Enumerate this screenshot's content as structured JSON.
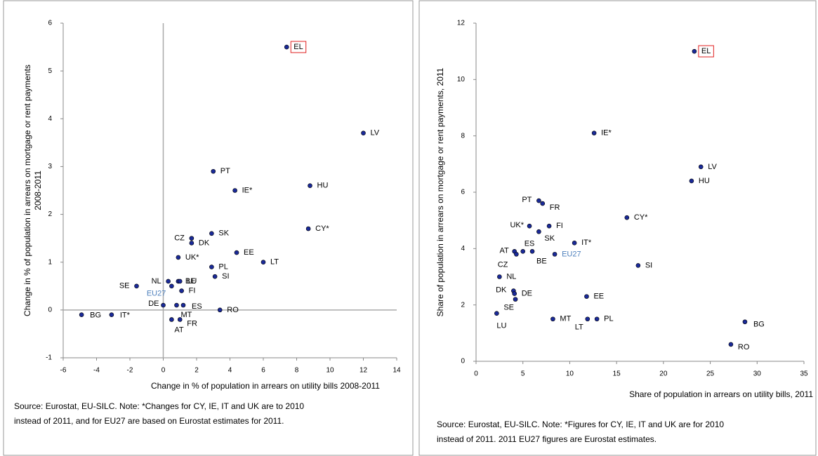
{
  "chart_data": [
    {
      "type": "scatter",
      "xlabel": "Change in % of population in arrears on utility bills 2008-2011",
      "ylabel": [
        "Change in % of population in arrears on mortgage or rent payments",
        "2008-2011"
      ],
      "note": [
        "Source: Eurostat, EU-SILC. Note: *Changes for CY, IE, IT and UK are to 2010",
        "instead of 2011, and for EU27 are based on Eurostat estimates for 2011."
      ],
      "labels": [
        "EL",
        "LV",
        "PT",
        "IE*",
        "HU",
        "CY*",
        "SK",
        "CZ",
        "DK",
        "EE",
        "UK*",
        "LT",
        "PL",
        "SI",
        "NL",
        "BE",
        "LU",
        "SE",
        "EU27",
        "FI",
        "DE",
        "ES",
        "MT",
        "AT",
        "FR",
        "RO",
        "BG",
        "IT*"
      ],
      "x": [
        7.4,
        12,
        3,
        4.3,
        8.8,
        8.7,
        2.9,
        1.7,
        1.7,
        4.4,
        0.9,
        6,
        2.9,
        3.1,
        0.3,
        0.9,
        1.0,
        -1.6,
        0.5,
        1.1,
        0,
        1.2,
        0.8,
        0.5,
        1.0,
        3.4,
        -4.9,
        -3.1
      ],
      "values": [
        5.5,
        3.7,
        2.9,
        2.5,
        2.6,
        1.7,
        1.6,
        1.5,
        1.4,
        1.2,
        1.1,
        1.0,
        0.9,
        0.7,
        0.6,
        0.6,
        0.6,
        0.5,
        0.5,
        0.4,
        0.1,
        0.1,
        0.1,
        -0.2,
        -0.2,
        0,
        -0.1,
        -0.1
      ],
      "label_colors": [
        "#000",
        "#000",
        "#000",
        "#000",
        "#000",
        "#000",
        "#000",
        "#000",
        "#000",
        "#000",
        "#000",
        "#000",
        "#000",
        "#000",
        "#000",
        "#000",
        "#000",
        "#000",
        "#4f81bd",
        "#000",
        "#000",
        "#000",
        "#000",
        "#000",
        "#000",
        "#000",
        "#000",
        "#000"
      ],
      "label_box": [
        true,
        false,
        false,
        false,
        false,
        false,
        false,
        false,
        false,
        false,
        false,
        false,
        false,
        false,
        false,
        false,
        false,
        false,
        false,
        false,
        false,
        false,
        false,
        false,
        false,
        false,
        false,
        false
      ],
      "color": "#1a2a99",
      "box_color": "#e02020",
      "xlim": [
        -6,
        14
      ],
      "xticks": [
        -6,
        -4,
        -2,
        0,
        2,
        4,
        6,
        8,
        10,
        12,
        14
      ],
      "ylim": [
        -1,
        6
      ],
      "yticks": [
        -1,
        0,
        1,
        2,
        3,
        4,
        5,
        6
      ],
      "zero_lines": true
    },
    {
      "type": "scatter",
      "xlabel": "Share of population in arrears on utility bills, 2011",
      "ylabel": [
        "Share of population in arrears on mortgage or rent payments, 2011"
      ],
      "note": [
        "Source: Eurostat, EU-SILC. Note: *Figures for CY, IE, IT and UK are for 2010",
        "instead of 2011. 2011 EU27 figures are Eurostat estimates."
      ],
      "labels": [
        "EL",
        "IE*",
        "LV",
        "HU",
        "PT",
        "FR",
        "CY*",
        "FI",
        "UK*",
        "SK",
        "IT*",
        "AT",
        "CZ",
        "ES",
        "BE",
        "EU27",
        "SI",
        "NL",
        "EE",
        "DK",
        "DE",
        "SE",
        "LU",
        "MT",
        "LT",
        "PL",
        "BG",
        "RO"
      ],
      "x": [
        23.3,
        12.6,
        24,
        23,
        6.7,
        7.1,
        16.1,
        7.8,
        5.7,
        6.7,
        10.5,
        4.1,
        4.3,
        5.0,
        6.0,
        8.4,
        17.3,
        2.5,
        11.8,
        4.0,
        4.1,
        4.2,
        2.2,
        8.2,
        11.9,
        12.9,
        28.7,
        27.2
      ],
      "values": [
        11,
        8.1,
        6.9,
        6.4,
        5.7,
        5.6,
        5.1,
        4.8,
        4.8,
        4.6,
        4.2,
        3.9,
        3.8,
        3.9,
        3.9,
        3.8,
        3.4,
        3.0,
        2.3,
        2.5,
        2.4,
        2.2,
        1.7,
        1.5,
        1.5,
        1.5,
        1.4,
        0.6
      ],
      "label_colors": [
        "#000",
        "#000",
        "#000",
        "#000",
        "#000",
        "#000",
        "#000",
        "#000",
        "#000",
        "#000",
        "#000",
        "#000",
        "#000",
        "#000",
        "#000",
        "#4f81bd",
        "#000",
        "#000",
        "#000",
        "#000",
        "#000",
        "#000",
        "#000",
        "#000",
        "#000",
        "#000",
        "#000",
        "#000"
      ],
      "label_box": [
        true,
        false,
        false,
        false,
        false,
        false,
        false,
        false,
        false,
        false,
        false,
        false,
        false,
        false,
        false,
        false,
        false,
        false,
        false,
        false,
        false,
        false,
        false,
        false,
        false,
        false,
        false,
        false
      ],
      "color": "#1a2a99",
      "box_color": "#e02020",
      "xlim": [
        0,
        35
      ],
      "xticks": [
        0,
        5,
        10,
        15,
        20,
        25,
        30,
        35
      ],
      "ylim": [
        0,
        12
      ],
      "yticks": [
        0,
        2,
        4,
        6,
        8,
        10,
        12
      ],
      "zero_lines": false
    }
  ]
}
